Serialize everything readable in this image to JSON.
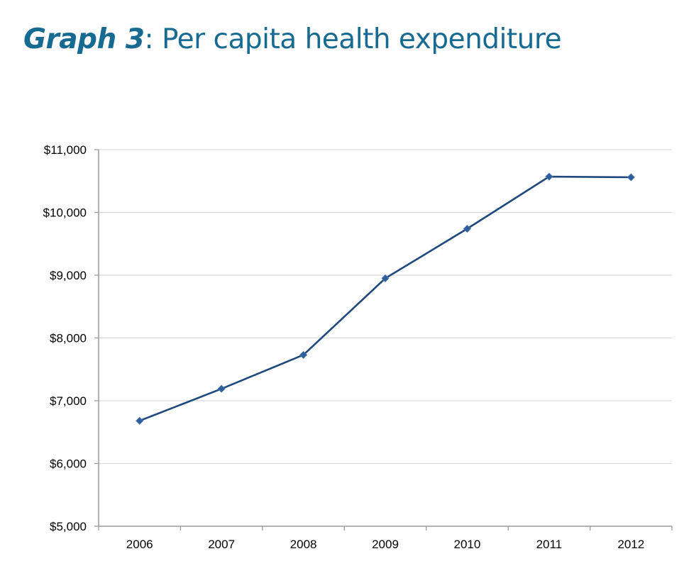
{
  "slide": {
    "title_bold": "Graph 3",
    "title_rest": ":  Per capita health expenditure",
    "colors": {
      "title": "#176a92",
      "series_line": "#1f497d",
      "marker_fill": "#2f5d99",
      "gridline": "#d9d9d9",
      "axis": "#9a9a9a"
    }
  },
  "chart_data": {
    "type": "line",
    "title": "Per capita health expenditure",
    "xlabel": "",
    "ylabel": "",
    "categories": [
      "2006",
      "2007",
      "2008",
      "2009",
      "2010",
      "2011",
      "2012"
    ],
    "series": [
      {
        "name": "Per capita health expenditure",
        "values": [
          6680,
          7190,
          7730,
          8950,
          9740,
          10570,
          10560
        ],
        "marker": "diamond"
      }
    ],
    "ylim": [
      5000,
      11000
    ],
    "yticks": [
      5000,
      6000,
      7000,
      8000,
      9000,
      10000,
      11000
    ],
    "ytick_labels": [
      "$5,000",
      "$6,000",
      "$7,000",
      "$8,000",
      "$9,000",
      "$10,000",
      "$11,000"
    ],
    "grid": true,
    "legend": "none"
  }
}
